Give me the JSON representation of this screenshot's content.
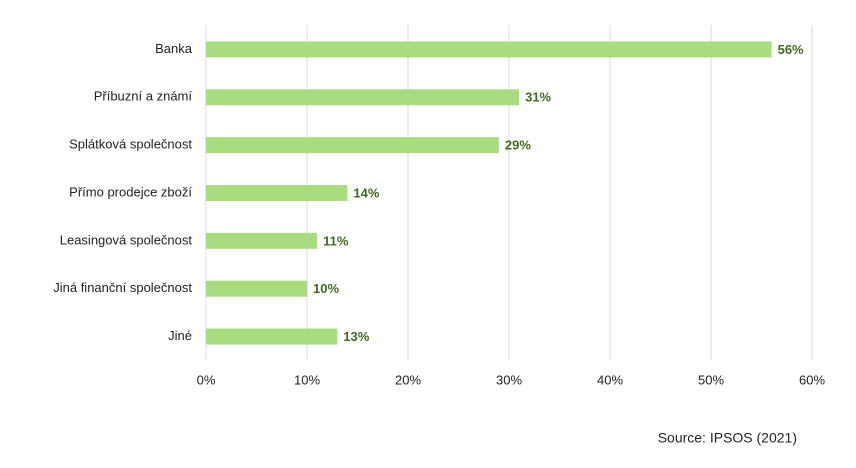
{
  "chart_data": {
    "type": "bar",
    "orientation": "horizontal",
    "categories": [
      "Banka",
      "Příbuzní a známí",
      "Splátková společnost",
      "Přímo prodejce zboží",
      "Leasingová společnost",
      "Jiná finanční společnost",
      "Jiné"
    ],
    "values": [
      56,
      31,
      29,
      14,
      11,
      10,
      13
    ],
    "value_labels": [
      "56%",
      "31%",
      "29%",
      "14%",
      "11%",
      "10%",
      "13%"
    ],
    "color": "#a9dc7f",
    "xlim": [
      0,
      60
    ],
    "xticks": [
      {
        "value": 0,
        "label": "0%"
      },
      {
        "value": 10,
        "label": "10%"
      },
      {
        "value": 20,
        "label": "20%"
      },
      {
        "value": 30,
        "label": "30%"
      },
      {
        "value": 40,
        "label": "40%"
      },
      {
        "value": 50,
        "label": "50%"
      },
      {
        "value": 60,
        "label": "60%"
      }
    ],
    "grid": true,
    "source": "Source: IPSOS (2021)"
  }
}
